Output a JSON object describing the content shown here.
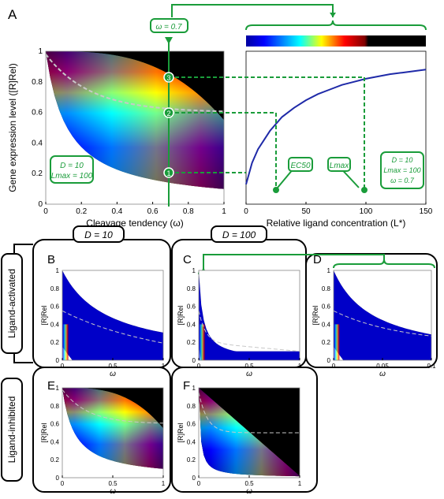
{
  "panels": {
    "A": {
      "label": "A"
    },
    "B": {
      "label": "B"
    },
    "C": {
      "label": "C"
    },
    "D": {
      "label": "D"
    },
    "E": {
      "label": "E"
    },
    "F": {
      "label": "F"
    }
  },
  "row_labels": {
    "activated": "Ligand-activated",
    "inhibited": "Ligand-inhibited"
  },
  "group_labels": {
    "d10": "D = 10",
    "d100": "D = 100"
  },
  "annotations": {
    "omega_box": "ω = 0.7",
    "markers": [
      "1",
      "2",
      "3"
    ],
    "legend_left": [
      "D = 10",
      "Lmax = 100"
    ],
    "legend_right": [
      "D = 10",
      "Lmax = 100",
      "ω = 0.7"
    ],
    "ec50": "EC50",
    "lmax": "Lmax"
  },
  "colors": {
    "accent_green": "#1a9c3a",
    "curve_blue": "#1f2aa8",
    "bg_black": "#000000"
  },
  "chart_data": [
    {
      "type": "heatmap",
      "panel": "A-left",
      "xlabel": "Cleavage tendency (ω)",
      "ylabel": "Gene expression level ([R]Rel)",
      "xticks": [
        "0",
        "0.2",
        "0.4",
        "0.6",
        "0.8",
        "1"
      ],
      "yticks": [
        "0",
        "0.2",
        "0.4",
        "0.6",
        "0.8",
        "1"
      ],
      "xlim": [
        0,
        1
      ],
      "ylim": [
        0,
        1
      ],
      "mode": "inhibited",
      "D": 10
    },
    {
      "type": "line",
      "panel": "A-right",
      "xlabel": "Relative ligand concentration (L*)",
      "xticks": [
        "0",
        "50",
        "100",
        "150"
      ],
      "xlim": [
        0,
        150
      ],
      "ylim": [
        0,
        1
      ],
      "x": [
        0,
        5,
        10,
        20,
        30,
        40,
        50,
        60,
        70,
        80,
        90,
        100,
        110,
        120,
        130,
        140,
        150
      ],
      "y": [
        0.13,
        0.27,
        0.36,
        0.48,
        0.57,
        0.63,
        0.68,
        0.72,
        0.75,
        0.78,
        0.8,
        0.82,
        0.835,
        0.85,
        0.86,
        0.87,
        0.88
      ]
    },
    {
      "type": "heatmap",
      "panel": "B",
      "xlabel": "ω",
      "ylabel": "[R]Rel",
      "xticks": [
        "0",
        "0.5",
        "1"
      ],
      "yticks": [
        "0",
        "0.2",
        "0.4",
        "0.6",
        "0.8",
        "1"
      ],
      "xlim": [
        0,
        1
      ],
      "ylim": [
        0,
        1
      ],
      "mode": "activated",
      "D": 10
    },
    {
      "type": "heatmap",
      "panel": "C",
      "xlabel": "ω",
      "ylabel": "[R]Rel",
      "xticks": [
        "0",
        "0.5",
        "1"
      ],
      "yticks": [
        "0",
        "0.2",
        "0.4",
        "0.6",
        "0.8",
        "1"
      ],
      "xlim": [
        0,
        1
      ],
      "ylim": [
        0,
        1
      ],
      "mode": "activated",
      "D": 100
    },
    {
      "type": "heatmap",
      "panel": "D",
      "xlabel": "ω",
      "ylabel": "[R]Rel",
      "xticks": [
        "0",
        "0.05",
        "0.1"
      ],
      "yticks": [
        "0",
        "0.2",
        "0.4",
        "0.6",
        "0.8",
        "1"
      ],
      "xlim": [
        0,
        0.1
      ],
      "ylim": [
        0,
        1
      ],
      "mode": "activated",
      "D": 100
    },
    {
      "type": "heatmap",
      "panel": "E",
      "xlabel": "ω",
      "ylabel": "[R]Rel",
      "xticks": [
        "0",
        "0.5",
        "1"
      ],
      "yticks": [
        "0",
        "0.2",
        "0.4",
        "0.6",
        "0.8",
        "1"
      ],
      "xlim": [
        0,
        1
      ],
      "ylim": [
        0,
        1
      ],
      "mode": "inhibited",
      "D": 10
    },
    {
      "type": "heatmap",
      "panel": "F",
      "xlabel": "ω",
      "ylabel": "[R]Rel",
      "xticks": [
        "0",
        "0.5",
        "1"
      ],
      "yticks": [
        "0",
        "0.2",
        "0.4",
        "0.6",
        "0.8",
        "1"
      ],
      "xlim": [
        0,
        1
      ],
      "ylim": [
        0,
        1
      ],
      "mode": "inhibited",
      "D": 100
    }
  ]
}
